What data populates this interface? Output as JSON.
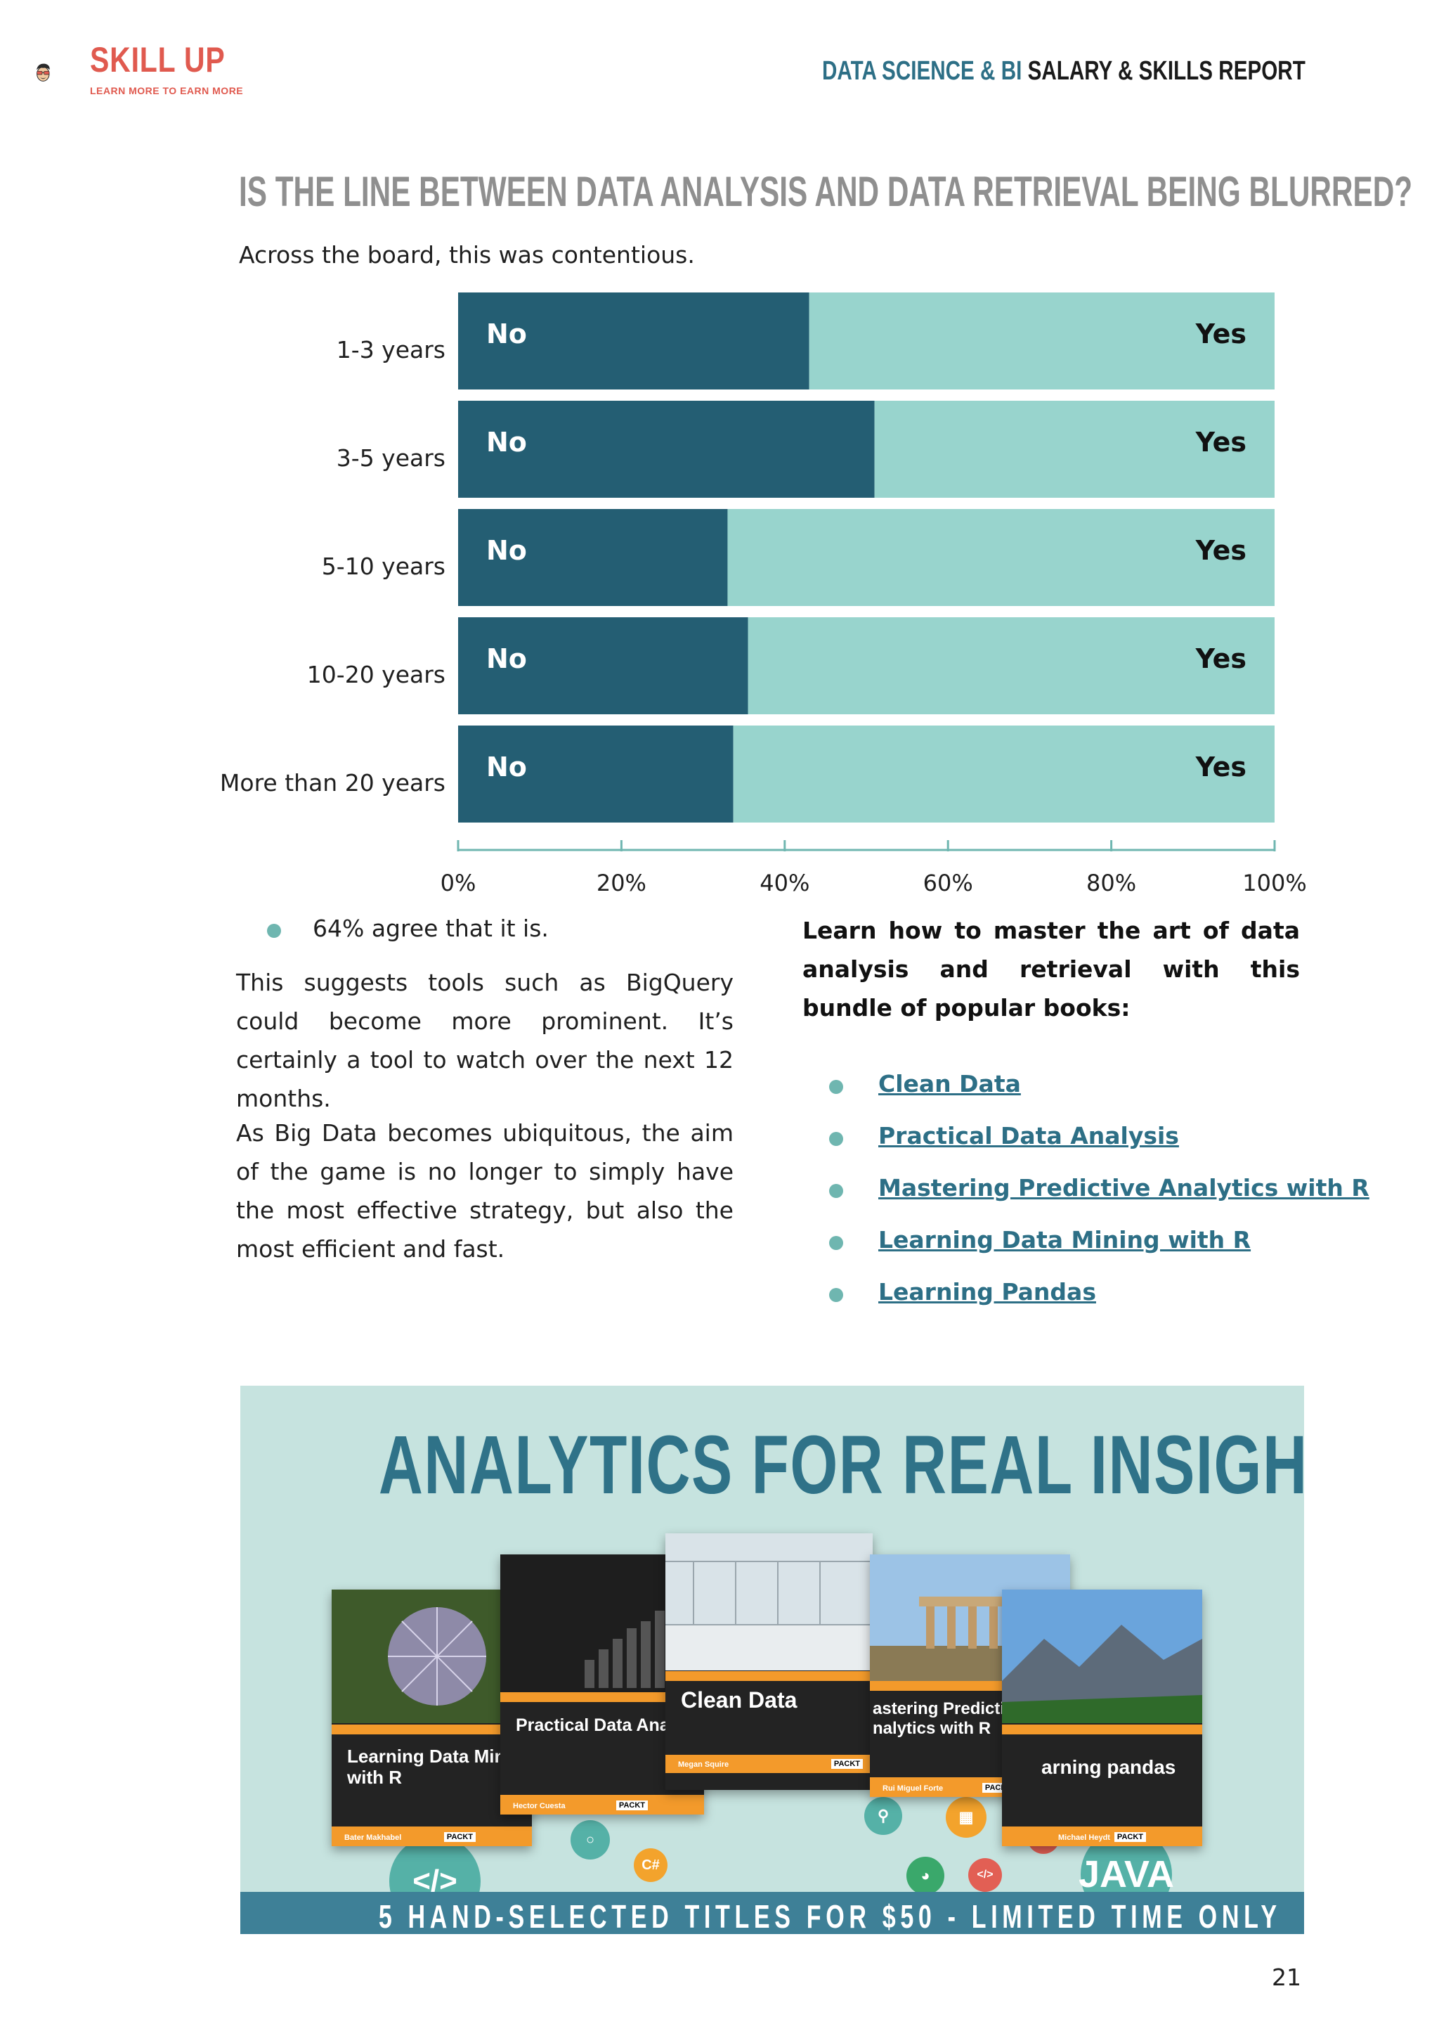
{
  "header": {
    "logo_name": "SKILL UP",
    "logo_tagline": "LEARN MORE TO EARN MORE",
    "report_title_accent": "DATA SCIENCE & BI",
    "report_title_rest": " SALARY & SKILLS REPORT"
  },
  "section": {
    "headline": "IS THE LINE BETWEEN DATA ANALYSIS AND DATA RETRIEVAL BEING BLURRED?",
    "intro": "Across the board, this was contentious."
  },
  "chart_data": {
    "type": "bar",
    "orientation": "horizontal",
    "stacked": true,
    "categories": [
      "1-3 years",
      "3-5 years",
      "5-10 years",
      "10-20 years",
      "More than 20 years"
    ],
    "series": [
      {
        "name": "No",
        "values": [
          43,
          51,
          33,
          35.5,
          33.7
        ],
        "color": "#245e73"
      },
      {
        "name": "Yes",
        "values": [
          57,
          49,
          67,
          64.5,
          66.3
        ],
        "color": "#98d4cd"
      }
    ],
    "xlim": [
      0,
      100
    ],
    "xticks": [
      "0%",
      "20%",
      "40%",
      "60%",
      "80%",
      "100%"
    ],
    "bar_labels": {
      "no": "No",
      "yes": "Yes"
    },
    "grid": false
  },
  "left": {
    "bullet": "64% agree that it is.",
    "para1": "This suggests tools such as BigQuery could become more prominent. It’s certainly a tool to watch over the next 12 months.",
    "para2": "As Big Data becomes ubiquitous, the aim of the game is no longer to simply have the most effective strategy, but also the most efficient and fast."
  },
  "right": {
    "intro": "Learn how to master the art of data analysis and retrieval with this bundle of popular books:",
    "links": [
      "Clean Data",
      "Practical Data Analysis",
      "Mastering Predictive Analytics with R",
      "Learning Data Mining with R",
      "Learning Pandas"
    ]
  },
  "banner": {
    "title": "ANALYTICS FOR REAL INSIGHT",
    "strip": "5 HAND-SELECTED TITLES FOR $50 - LIMITED TIME ONLY",
    "books": [
      {
        "title_line1": "Learning Data Min",
        "title_line2": "with R",
        "author": "Bater Makhabel"
      },
      {
        "title_line1": "Practical Data Anal",
        "title_line2": "",
        "author": "Hector Cuesta"
      },
      {
        "title_line1": "Clean Data",
        "title_line2": "",
        "author": "Megan Squire"
      },
      {
        "title_line1": "astering Predictive",
        "title_line2": "nalytics with R",
        "author": "Rui Miguel Forte"
      },
      {
        "title_line1": "arning pandas",
        "title_line2": "",
        "author": "Michael Heydt"
      }
    ],
    "publisher": "PACKT",
    "icons": {
      "code": "</>",
      "java": "JAVA",
      "csharp": "C#"
    }
  },
  "page_number": "21",
  "colors": {
    "accent": "#2d6f86",
    "no_bar": "#245e73",
    "yes_bar": "#98d4cd",
    "bullet": "#6fb6b0",
    "logo": "#e05a4f"
  }
}
